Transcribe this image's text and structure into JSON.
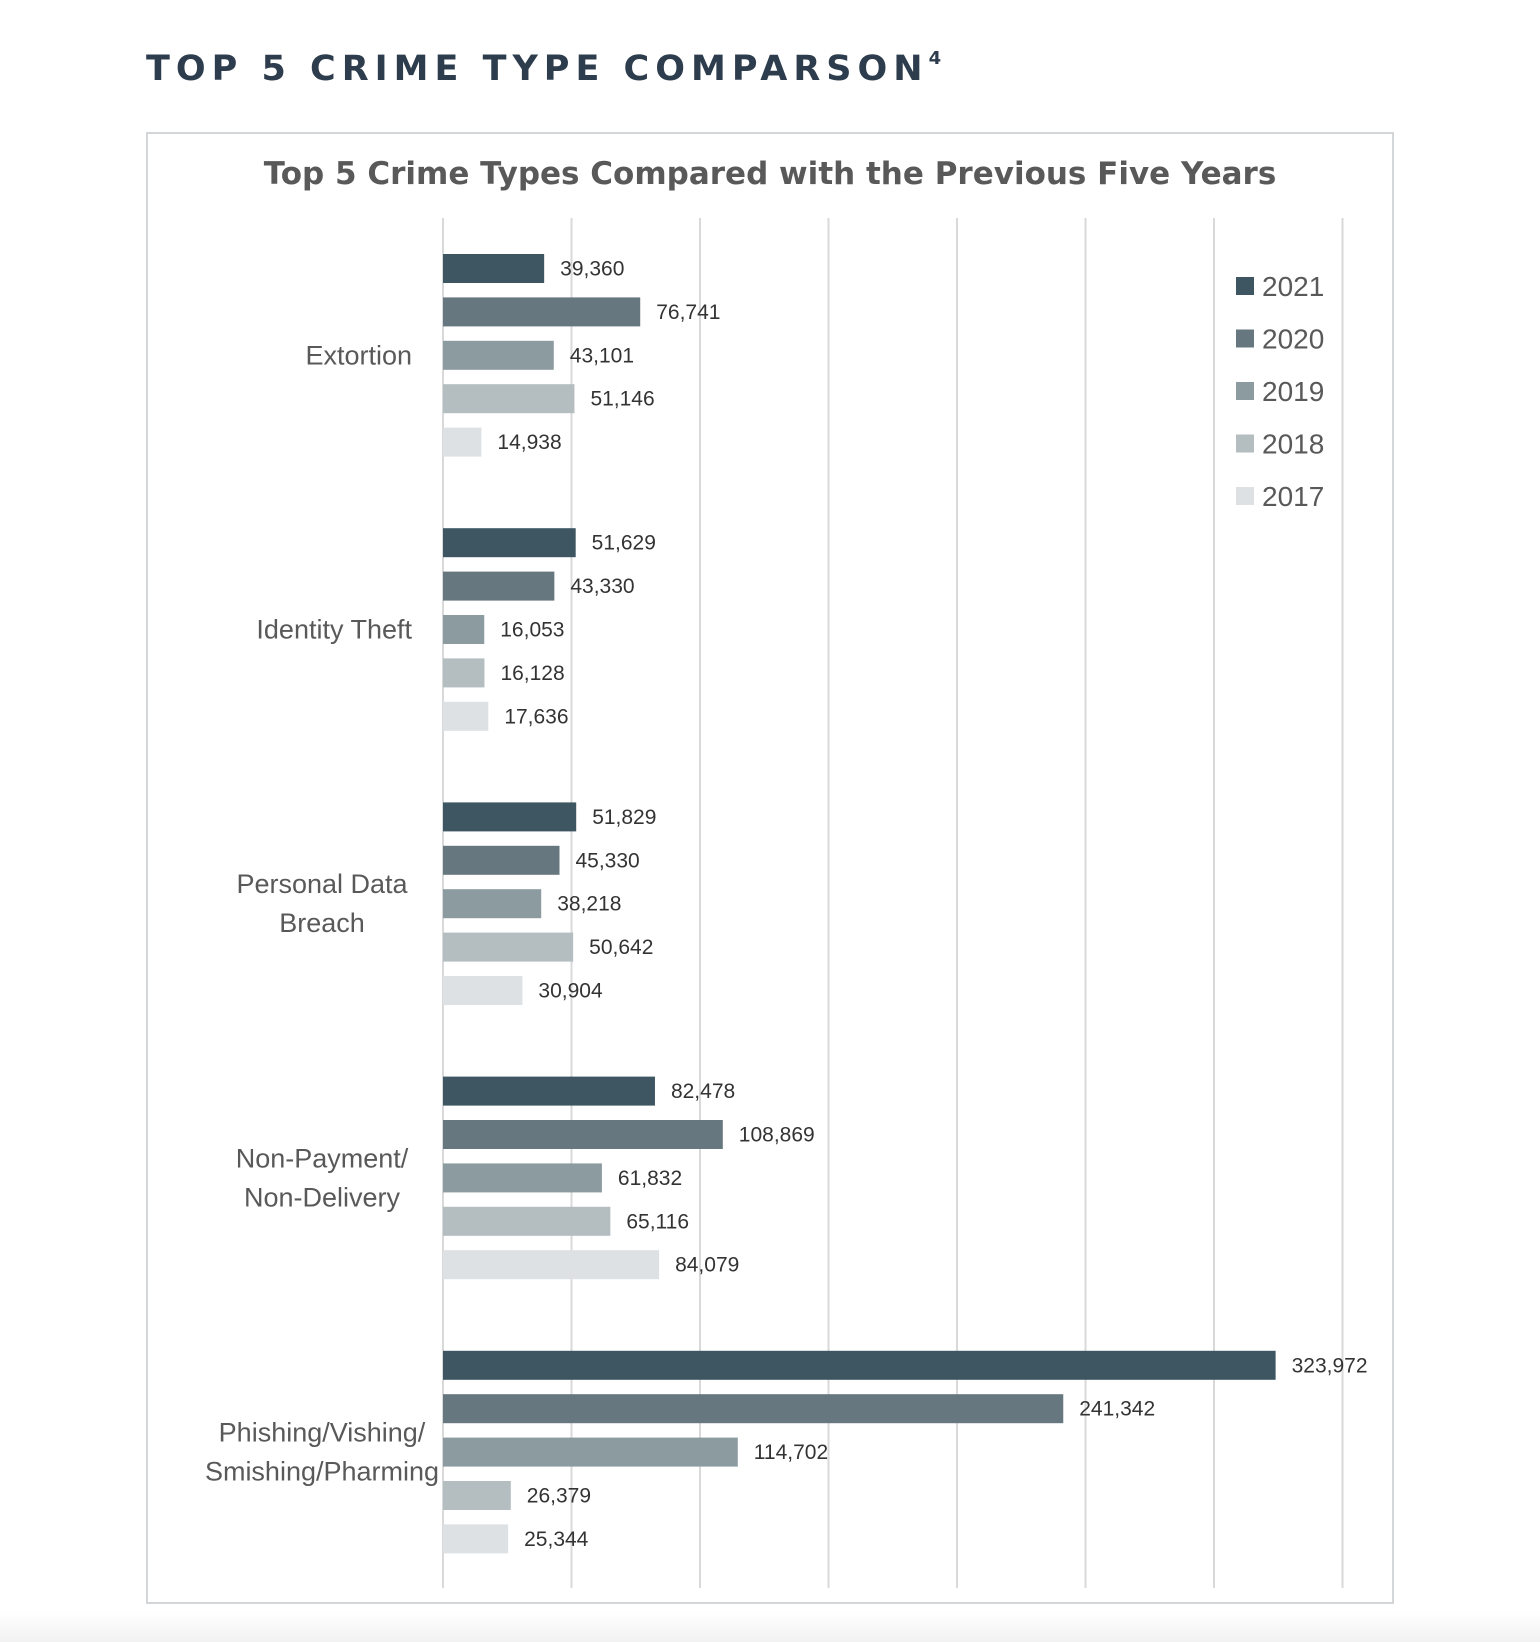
{
  "page": {
    "heading": "TOP 5 CRIME TYPE COMPARSON",
    "footnote_marker": "4"
  },
  "colors": {
    "2021": "#3d5662",
    "2020": "#66777f",
    "2019": "#8c9b9f",
    "2018": "#b4bdc0",
    "2017": "#dde1e4",
    "gridline": "#d9d9d9",
    "label_text": "#595959",
    "value_text": "#333333"
  },
  "chart_data": {
    "type": "bar",
    "orientation": "horizontal",
    "title": "Top 5 Crime Types Compared with the Previous Five Years",
    "xlabel": "",
    "ylabel": "",
    "xlim": [
      0,
      350000
    ],
    "grid": true,
    "legend_position": "top-right",
    "categories": [
      "Extortion",
      "Identity Theft",
      "Personal Data Breach",
      "Non-Payment/ Non-Delivery",
      "Phishing/Vishing/ Smishing/Pharming"
    ],
    "category_lines": [
      [
        "Extortion"
      ],
      [
        "Identity Theft"
      ],
      [
        "Personal Data",
        "Breach"
      ],
      [
        "Non-Payment/",
        "Non-Delivery"
      ],
      [
        "Phishing/Vishing/",
        "Smishing/Pharming"
      ]
    ],
    "series": [
      {
        "name": "2021",
        "values": [
          39360,
          51629,
          51829,
          82478,
          323972
        ],
        "labels": [
          "39,360",
          "51,629",
          "51,829",
          "82,478",
          "323,972"
        ]
      },
      {
        "name": "2020",
        "values": [
          76741,
          43330,
          45330,
          108869,
          241342
        ],
        "labels": [
          "76,741",
          "43,330",
          "45,330",
          "108,869",
          "241,342"
        ]
      },
      {
        "name": "2019",
        "values": [
          43101,
          16053,
          38218,
          61832,
          114702
        ],
        "labels": [
          "43,101",
          "16,053",
          "38,218",
          "61,832",
          "114,702"
        ]
      },
      {
        "name": "2018",
        "values": [
          51146,
          16128,
          50642,
          65116,
          26379
        ],
        "labels": [
          "51,146",
          "16,128",
          "50,642",
          "65,116",
          "26,379"
        ]
      },
      {
        "name": "2017",
        "values": [
          14938,
          17636,
          30904,
          84079,
          25344
        ],
        "labels": [
          "14,938",
          "17,636",
          "30,904",
          "84,079",
          "25,344"
        ]
      }
    ]
  }
}
